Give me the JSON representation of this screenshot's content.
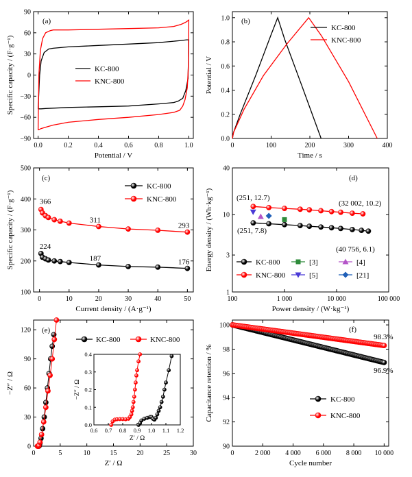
{
  "colors": {
    "kc": "#000000",
    "knc": "#ff0000",
    "ref3": "#2e8b3a",
    "ref4": "#b455c8",
    "ref5": "#4a3ad6",
    "ref21": "#1f5fb8"
  },
  "chart_data": [
    {
      "id": "a",
      "type": "line",
      "panel_label": "(a)",
      "xlabel": "Potential / V",
      "ylabel": "Specific capacity / (F·g⁻¹)",
      "xlim": [
        -0.03,
        1.03
      ],
      "ylim": [
        -90,
        90
      ],
      "xticks": [
        0.0,
        0.2,
        0.4,
        0.6,
        0.8,
        1.0
      ],
      "xtick_labels": [
        "0.0",
        "0.2",
        "0.4",
        "0.6",
        "0.8",
        "1.0"
      ],
      "yticks": [
        -90,
        -60,
        -30,
        0,
        30,
        60,
        90
      ],
      "ytick_labels": [
        "−90",
        "−60",
        "−30",
        "0",
        "30",
        "60",
        "90"
      ],
      "legend_position": "center",
      "series": [
        {
          "name": "KC-800",
          "color": "#000000",
          "x": [
            0.0,
            0.01,
            0.02,
            0.04,
            0.07,
            0.1,
            0.2,
            0.4,
            0.6,
            0.8,
            0.95,
            0.985,
            1.0,
            0.995,
            0.98,
            0.96,
            0.93,
            0.9,
            0.8,
            0.6,
            0.4,
            0.2,
            0.1,
            0.05,
            0.02,
            0.01,
            0.0
          ],
          "y": [
            -48,
            0,
            20,
            32,
            37,
            38,
            40,
            42,
            44,
            46,
            49,
            50,
            50,
            -5,
            -22,
            -33,
            -37,
            -39,
            -41,
            -44,
            -45,
            -46,
            -47,
            -47.5,
            -48,
            -48,
            -48
          ]
        },
        {
          "name": "KNC-800",
          "color": "#ff0000",
          "x": [
            0.0,
            0.005,
            0.015,
            0.03,
            0.05,
            0.08,
            0.1,
            0.2,
            0.4,
            0.6,
            0.8,
            0.9,
            0.95,
            0.98,
            1.0,
            0.997,
            0.99,
            0.975,
            0.96,
            0.94,
            0.9,
            0.8,
            0.6,
            0.4,
            0.2,
            0.1,
            0.05,
            0.02,
            0.0
          ],
          "y": [
            -78,
            0,
            35,
            52,
            60,
            63,
            64,
            64,
            65,
            66,
            67,
            69,
            72,
            75,
            78,
            10,
            -18,
            -35,
            -44,
            -50,
            -53,
            -56,
            -60,
            -63,
            -67,
            -71,
            -74,
            -76,
            -78
          ]
        }
      ]
    },
    {
      "id": "b",
      "type": "line",
      "panel_label": "(b)",
      "xlabel": "Time / s",
      "ylabel": "Potential / V",
      "xlim": [
        0,
        400
      ],
      "ylim": [
        0.0,
        1.05
      ],
      "xticks": [
        0,
        100,
        200,
        300,
        400
      ],
      "xtick_labels": [
        "0",
        "100",
        "200",
        "300",
        "400"
      ],
      "yticks": [
        0.0,
        0.2,
        0.4,
        0.6,
        0.8,
        1.0
      ],
      "ytick_labels": [
        "0.0",
        "0.2",
        "0.4",
        "0.6",
        "0.8",
        "1.0"
      ],
      "legend_position": "top-right",
      "series": [
        {
          "name": "KC-800",
          "color": "#000000",
          "x": [
            0,
            3,
            20,
            60,
            100,
            117,
            135,
            180,
            229
          ],
          "y": [
            0,
            0.05,
            0.2,
            0.52,
            0.86,
            1.0,
            0.82,
            0.43,
            0
          ]
        },
        {
          "name": "KNC-800",
          "color": "#ff0000",
          "x": [
            0,
            3,
            30,
            80,
            140,
            197,
            230,
            300,
            374
          ],
          "y": [
            0,
            0.05,
            0.24,
            0.52,
            0.78,
            1.0,
            0.85,
            0.47,
            0
          ]
        }
      ]
    },
    {
      "id": "c",
      "type": "line",
      "panel_label": "(c)",
      "xlabel": "Current density / (A·g⁻¹)",
      "ylabel": "Specific capacity / (F·g⁻¹)",
      "xlim": [
        -2,
        52
      ],
      "ylim": [
        100,
        500
      ],
      "xticks": [
        0,
        10,
        20,
        30,
        40,
        50
      ],
      "xtick_labels": [
        "0",
        "10",
        "20",
        "30",
        "40",
        "50"
      ],
      "yticks": [
        100,
        200,
        300,
        400,
        500
      ],
      "ytick_labels": [
        "100",
        "200",
        "300",
        "400",
        "500"
      ],
      "legend_position": "top-right",
      "series": [
        {
          "name": "KC-800",
          "color": "#000000",
          "marker": "circle",
          "x": [
            0.5,
            1,
            2,
            3,
            5,
            7,
            10,
            20,
            30,
            40,
            50
          ],
          "y": [
            224,
            212,
            207,
            203,
            200,
            198,
            195,
            187,
            182,
            180,
            176
          ]
        },
        {
          "name": "KNC-800",
          "color": "#ff0000",
          "marker": "circle",
          "x": [
            0.5,
            1,
            2,
            3,
            5,
            7,
            10,
            20,
            30,
            40,
            50
          ],
          "y": [
            366,
            355,
            346,
            340,
            333,
            328,
            322,
            311,
            303,
            299,
            293
          ]
        }
      ],
      "annotations": [
        {
          "text": "366",
          "color": "#ff0000",
          "x": 0.5,
          "y": 366
        },
        {
          "text": "311",
          "color": "#ff0000",
          "x": 20,
          "y": 311
        },
        {
          "text": "293",
          "color": "#ff0000",
          "x": 50,
          "y": 293
        },
        {
          "text": "224",
          "color": "#000000",
          "x": 0.5,
          "y": 224
        },
        {
          "text": "187",
          "color": "#000000",
          "x": 20,
          "y": 187
        },
        {
          "text": "176",
          "color": "#000000",
          "x": 50,
          "y": 176
        }
      ]
    },
    {
      "id": "d",
      "type": "scatter",
      "panel_label": "(d)",
      "xlabel": "Power density / (W·kg⁻¹)",
      "ylabel": "Energy density / (Wh·kg⁻¹)",
      "xscale": "log",
      "yscale": "log",
      "xlim": [
        100,
        100000
      ],
      "ylim": [
        1,
        40
      ],
      "xticks": [
        100,
        1000,
        10000,
        100000
      ],
      "xtick_labels": [
        "100",
        "1 000",
        "10 000",
        "100 000"
      ],
      "yticks": [
        1,
        3,
        10,
        40
      ],
      "ytick_labels": [
        "1",
        "3",
        "10",
        "40"
      ],
      "legend_position": "bottom-left",
      "series": [
        {
          "name": "KC-800",
          "color": "#000000",
          "marker": "circle",
          "x": [
            251,
            500,
            1000,
            2000,
            3000,
            5000,
            8000,
            12000,
            20000,
            30000,
            40756
          ],
          "y": [
            7.8,
            7.6,
            7.4,
            7.2,
            7.05,
            6.9,
            6.75,
            6.6,
            6.4,
            6.25,
            6.1
          ]
        },
        {
          "name": "KNC-800",
          "color": "#ff0000",
          "marker": "circle",
          "x": [
            251,
            500,
            1000,
            2000,
            3000,
            5000,
            8000,
            12000,
            20000,
            32002
          ],
          "y": [
            12.7,
            12.3,
            12.0,
            11.7,
            11.5,
            11.2,
            10.9,
            10.7,
            10.4,
            10.2
          ]
        },
        {
          "name": "[3]",
          "color": "#2e8b3a",
          "marker": "square",
          "x": [
            1000
          ],
          "y": [
            8.6
          ]
        },
        {
          "name": "[4]",
          "color": "#b455c8",
          "marker": "triangle-up",
          "x": [
            350
          ],
          "y": [
            9.4
          ]
        },
        {
          "name": "[5]",
          "color": "#4a3ad6",
          "marker": "triangle-down",
          "x": [
            250
          ],
          "y": [
            10.8
          ]
        },
        {
          "name": "[21]",
          "color": "#1f5fb8",
          "marker": "diamond",
          "x": [
            500
          ],
          "y": [
            9.6
          ]
        }
      ],
      "annotations": [
        {
          "text": "(251, 12.7)",
          "color": "#ff0000"
        },
        {
          "text": "(32 002, 10.2)",
          "color": "#ff0000"
        },
        {
          "text": "(251, 7.8)",
          "color": "#000000"
        },
        {
          "text": "(40 756, 6.1)",
          "color": "#000000"
        }
      ]
    },
    {
      "id": "e",
      "type": "line",
      "panel_label": "(e)",
      "xlabel": "Z′ / Ω",
      "ylabel": "−Z″ / Ω",
      "xlim": [
        0,
        30
      ],
      "ylim": [
        0,
        130
      ],
      "xticks": [
        0,
        5,
        10,
        15,
        20,
        25,
        30
      ],
      "xtick_labels": [
        "0",
        "5",
        "10",
        "15",
        "20",
        "25",
        "30"
      ],
      "yticks": [
        0,
        30,
        60,
        90,
        120
      ],
      "ytick_labels": [
        "0",
        "30",
        "60",
        "90",
        "120"
      ],
      "legend_position": "top",
      "series": [
        {
          "name": "KC-800",
          "color": "#000000",
          "marker": "circle",
          "x": [
            0.95,
            1.0,
            1.05,
            1.1,
            1.2,
            1.4,
            1.7,
            2.0,
            2.3,
            2.6,
            2.9,
            3.2,
            3.5,
            3.8
          ],
          "y": [
            0,
            0.1,
            0.3,
            1,
            3,
            8,
            18,
            30,
            45,
            60,
            75,
            90,
            103,
            115
          ]
        },
        {
          "name": "KNC-800",
          "color": "#ff0000",
          "marker": "circle",
          "x": [
            0.72,
            0.78,
            0.85,
            0.9,
            1.0,
            1.2,
            1.5,
            1.9,
            2.3,
            2.7,
            3.1,
            3.5,
            3.9,
            4.3
          ],
          "y": [
            0,
            0.02,
            0.02,
            0.05,
            0.5,
            4,
            12,
            25,
            40,
            57,
            73,
            90,
            110,
            130
          ]
        }
      ],
      "inset": {
        "xlim": [
          0.6,
          1.2
        ],
        "ylim": [
          0.0,
          0.4
        ],
        "xticks": [
          0.6,
          0.7,
          0.8,
          0.9,
          1.0,
          1.1,
          1.2
        ],
        "xtick_labels": [
          "0.6",
          "0.7",
          "0.8",
          "0.9",
          "1.0",
          "1.1",
          "1.2"
        ],
        "yticks": [
          0.0,
          0.1,
          0.2,
          0.3,
          0.4
        ],
        "ytick_labels": [
          "0.0",
          "0.1",
          "0.2",
          "0.3",
          "0.4"
        ],
        "xlabel": "Z′ / Ω",
        "ylabel": "−Z″ / Ω",
        "series": [
          {
            "name": "KNC-800",
            "color": "#ff0000",
            "x": [
              0.72,
              0.73,
              0.745,
              0.76,
              0.78,
              0.8,
              0.82,
              0.84,
              0.85,
              0.86,
              0.865,
              0.87,
              0.875,
              0.88,
              0.885,
              0.89,
              0.895,
              0.9,
              0.91,
              0.92
            ],
            "y": [
              0.0,
              0.02,
              0.03,
              0.032,
              0.033,
              0.033,
              0.032,
              0.035,
              0.045,
              0.06,
              0.08,
              0.1,
              0.13,
              0.16,
              0.2,
              0.24,
              0.28,
              0.31,
              0.36,
              0.4
            ]
          },
          {
            "name": "KC-800",
            "color": "#000000",
            "x": [
              0.91,
              0.92,
              0.93,
              0.95,
              0.97,
              0.99,
              1.0,
              1.01,
              1.02,
              1.03,
              1.04,
              1.05,
              1.06,
              1.07,
              1.08,
              1.09,
              1.1,
              1.12,
              1.14
            ],
            "y": [
              0.0,
              0.01,
              0.025,
              0.035,
              0.04,
              0.045,
              0.045,
              0.035,
              0.03,
              0.04,
              0.06,
              0.08,
              0.1,
              0.13,
              0.16,
              0.2,
              0.24,
              0.31,
              0.39
            ]
          }
        ]
      }
    },
    {
      "id": "f",
      "type": "line",
      "panel_label": "(f)",
      "xlabel": "Cycle number",
      "ylabel": "Capacitance retention / %",
      "xlim": [
        0,
        10300
      ],
      "ylim": [
        90,
        100.4
      ],
      "xticks": [
        0,
        2000,
        4000,
        6000,
        8000,
        10000
      ],
      "xtick_labels": [
        "0",
        "2 000",
        "4 000",
        "6 000",
        "8 000",
        "10 000"
      ],
      "yticks": [
        90,
        92,
        94,
        96,
        98,
        100
      ],
      "ytick_labels": [
        "90",
        "92",
        "94",
        "96",
        "98",
        "100"
      ],
      "legend_position": "bottom-left",
      "series": [
        {
          "name": "KC-800",
          "color": "#000000",
          "marker": "circle",
          "x": [
            0,
            10000
          ],
          "y": [
            100,
            96.9
          ]
        },
        {
          "name": "KNC-800",
          "color": "#ff0000",
          "marker": "circle",
          "x": [
            0,
            10000
          ],
          "y": [
            100,
            98.3
          ]
        }
      ],
      "annotations": [
        {
          "text": "98.3%",
          "color": "#ff0000",
          "x": 10000,
          "y": 98.3
        },
        {
          "text": "96.9%",
          "color": "#000000",
          "x": 10000,
          "y": 96.9
        }
      ]
    }
  ]
}
